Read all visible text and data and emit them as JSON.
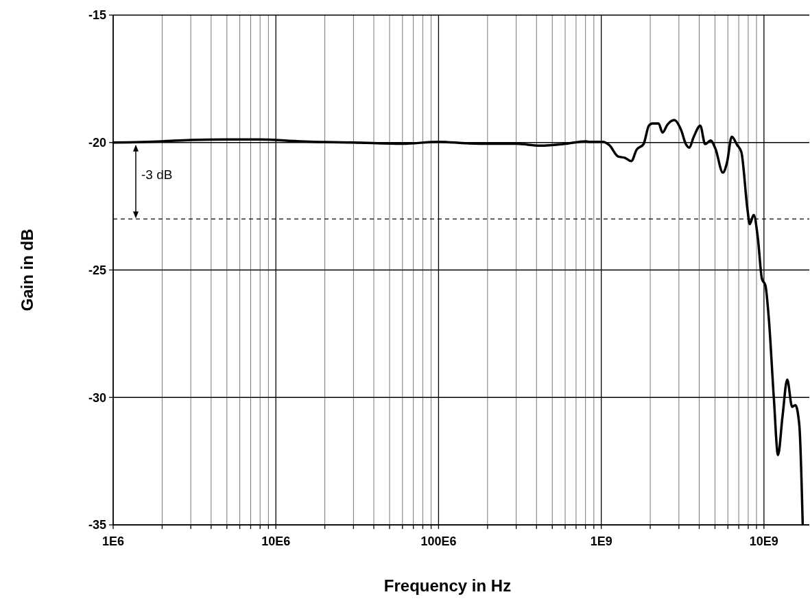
{
  "chart_data": {
    "type": "line",
    "xlabel": "Frequency in Hz",
    "ylabel": "Gain in dB",
    "log": "x",
    "grid": true,
    "xlim": [
      1000000,
      19000000000
    ],
    "ylim": [
      -35,
      -15
    ],
    "xticks": [
      {
        "value": 1000000,
        "label": "1E6"
      },
      {
        "value": 2000000,
        "label": null
      },
      {
        "value": 3000000,
        "label": null
      },
      {
        "value": 4000000,
        "label": null
      },
      {
        "value": 5000000,
        "label": null
      },
      {
        "value": 6000000,
        "label": null
      },
      {
        "value": 7000000,
        "label": null
      },
      {
        "value": 8000000,
        "label": null
      },
      {
        "value": 9000000,
        "label": null
      },
      {
        "value": 10000000,
        "label": "10E6"
      },
      {
        "value": 20000000,
        "label": null
      },
      {
        "value": 30000000,
        "label": null
      },
      {
        "value": 40000000,
        "label": null
      },
      {
        "value": 50000000,
        "label": null
      },
      {
        "value": 60000000,
        "label": null
      },
      {
        "value": 70000000,
        "label": null
      },
      {
        "value": 80000000,
        "label": null
      },
      {
        "value": 90000000,
        "label": null
      },
      {
        "value": 100000000,
        "label": "100E6"
      },
      {
        "value": 200000000,
        "label": null
      },
      {
        "value": 300000000,
        "label": null
      },
      {
        "value": 400000000,
        "label": null
      },
      {
        "value": 500000000,
        "label": null
      },
      {
        "value": 600000000,
        "label": null
      },
      {
        "value": 700000000,
        "label": null
      },
      {
        "value": 800000000,
        "label": null
      },
      {
        "value": 900000000,
        "label": null
      },
      {
        "value": 1000000000,
        "label": "1E9"
      },
      {
        "value": 2000000000,
        "label": null
      },
      {
        "value": 3000000000,
        "label": null
      },
      {
        "value": 4000000000,
        "label": null
      },
      {
        "value": 5000000000,
        "label": null
      },
      {
        "value": 6000000000,
        "label": null
      },
      {
        "value": 7000000000,
        "label": null
      },
      {
        "value": 8000000000,
        "label": null
      },
      {
        "value": 9000000000,
        "label": null
      },
      {
        "value": 10000000000,
        "label": "10E9"
      }
    ],
    "yticks": [
      -35,
      -30,
      -25,
      -20,
      -15
    ],
    "series": [
      {
        "color": "#000000",
        "x": [
          1000000,
          2000000,
          3000000,
          5000000,
          8000000,
          12000000,
          20000000,
          30000000,
          60000000,
          100000000,
          150000000,
          200000000,
          300000000,
          420000000,
          600000000,
          800000000,
          838000000,
          1020000000,
          1120000000,
          1270000000,
          1400000000,
          1530000000,
          1650000000,
          1820000000,
          1960000000,
          2060000000,
          2250000000,
          2380000000,
          2550000000,
          2810000000,
          3100000000,
          3310000000,
          3480000000,
          3690000000,
          4060000000,
          4350000000,
          4700000000,
          5030000000,
          5590000000,
          5930000000,
          6340000000,
          6850000000,
          7260000000,
          7930000000,
          8170000000,
          8650000000,
          9170000000,
          9720000000,
          10200000000,
          10700000000,
          11500000000,
          12200000000,
          13000000000,
          13900000000,
          14900000000,
          15600000000,
          16500000000,
          17300000000
        ],
        "values": [
          -20,
          -19.95,
          -19.9,
          -19.88,
          -19.88,
          -19.93,
          -19.98,
          -20.0,
          -20.05,
          -19.97,
          -20.03,
          -20.05,
          -20.05,
          -20.12,
          -20.05,
          -19.95,
          -19.97,
          -19.97,
          -20.1,
          -20.55,
          -20.6,
          -20.73,
          -20.28,
          -20.06,
          -19.34,
          -19.25,
          -19.25,
          -19.61,
          -19.3,
          -19.12,
          -19.52,
          -20.06,
          -20.2,
          -19.8,
          -19.34,
          -20.06,
          -19.92,
          -20.24,
          -21.18,
          -20.78,
          -19.77,
          -20.1,
          -20.37,
          -22.66,
          -23.2,
          -22.84,
          -23.74,
          -25.35,
          -25.6,
          -26.87,
          -30.02,
          -32.26,
          -30.75,
          -29.3,
          -30.37,
          -30.3,
          -31.1,
          -34.95
        ]
      }
    ],
    "ref_lines": [
      {
        "axis": "y",
        "value": -23,
        "line_style": "dashed",
        "color": "#000000"
      }
    ],
    "annotations": [
      "-3 dB"
    ]
  }
}
